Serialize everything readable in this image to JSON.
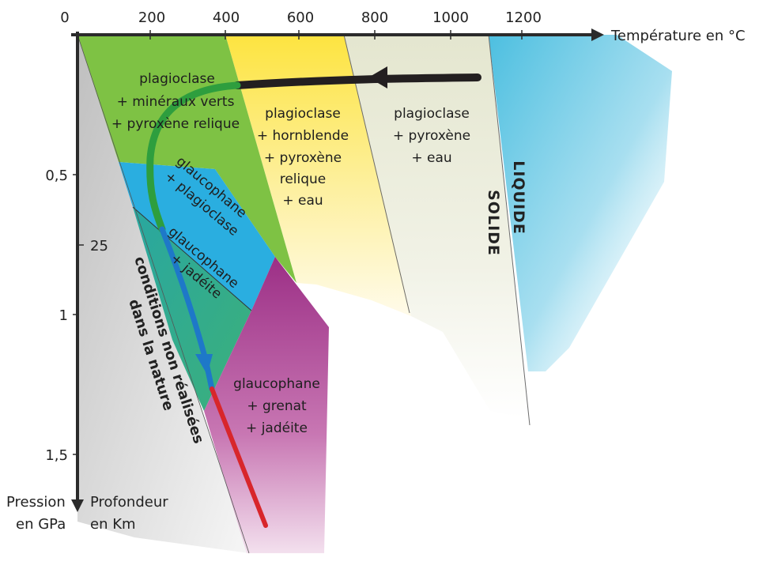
{
  "axes": {
    "x_ticks": [
      "0",
      "200",
      "400",
      "600",
      "800",
      "1000",
      "1200"
    ],
    "x_label": "Température en °C",
    "p_ticks": [
      "0,5",
      "1",
      "1,5"
    ],
    "depth_ticks": [
      "25"
    ],
    "pressure_label_line1": "Pression",
    "pressure_label_line2": "en GPa",
    "depth_label_line1": "Profondeur",
    "depth_label_line2": "en Km"
  },
  "fields": {
    "green": [
      "plagioclase",
      "+ minéraux verts",
      "+ pyroxène relique"
    ],
    "yellow": [
      "plagioclase",
      "+ hornblende",
      "+ pyroxène",
      "relique",
      "+ eau"
    ],
    "beige": [
      "plagioclase",
      "+ pyroxène",
      "+ eau"
    ],
    "blue": [
      "glaucophane",
      "+ plagioclase"
    ],
    "teal": [
      "glaucophane",
      "+ jadéite"
    ],
    "magenta": [
      "glaucophane",
      "+ grenat",
      "+ jadéite"
    ]
  },
  "boundaries": {
    "liquide": "LIQUIDE",
    "solide": "SOLIDE"
  },
  "non_natural": [
    "conditions non réalisées",
    "dans la nature"
  ],
  "colors": {
    "green_field": "#7cc142",
    "yellow_field": "#fde74c",
    "beige_field": "#e9ebd8",
    "blue_field": "#29b0e0",
    "teal_field": "#2eaa8e",
    "magenta_field": "#a53a8f",
    "liquid": "#4fc0e0",
    "grey_zone": "#c9c9c9",
    "path_black": "#231f20",
    "path_green": "#2e9e3e",
    "path_blue": "#1e78c8",
    "path_red": "#d8262b"
  }
}
